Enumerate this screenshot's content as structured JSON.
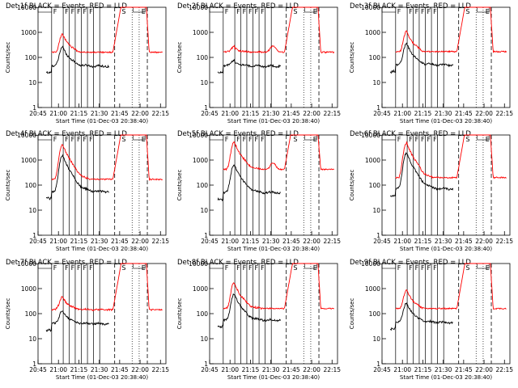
{
  "chart_data": {
    "type": "line",
    "layout": "3x3 grid of detector panels",
    "y_scale": "log",
    "ylim": [
      1,
      10000
    ],
    "yticks": [
      1,
      10,
      100,
      1000,
      10000
    ],
    "ytick_labels": [
      "1",
      "10",
      "100",
      "1000",
      "10000"
    ],
    "xlim_sec": [
      -300,
      5340
    ],
    "xticks_sec": [
      0,
      900,
      1800,
      2700,
      3600,
      4500
    ],
    "xtick_labels": [
      "20:45",
      "21:00",
      "21:15",
      "21:30",
      "21:45",
      "22:00",
      "22:15"
    ],
    "xtick_sec_list": [
      -300,
      600,
      1500,
      2400,
      3300,
      4200,
      5100
    ],
    "ylabel": "Counts/sec",
    "xlabel": "Start Time (01-Dec-03 20:38:40)",
    "colors": {
      "events": "#000000",
      "lld": "#ff0000",
      "background": "#ffffff"
    },
    "series_legend": [
      {
        "name": "Events",
        "color_label": "BLACK"
      },
      {
        "name": "LLD",
        "color_label": "RED"
      }
    ],
    "panels": [
      {
        "detector": "1",
        "title": "Det 1f BLACK = Events, RED = LLD",
        "events": {
          "base": 45,
          "peak": 260,
          "red_ratio": 3.2,
          "sat": 2400
        },
        "lld": {
          "base": 160,
          "hump": false
        },
        "flags": [
          "F",
          "F",
          "F",
          "F",
          "F",
          "F",
          "S",
          "E"
        ]
      },
      {
        "detector": "2",
        "title": "Det 2f BLACK = Events, RED = LLD",
        "events": {
          "base": 45,
          "peak": 70,
          "red_ratio": 3.5,
          "sat": 2400
        },
        "lld": {
          "base": 160,
          "hump": true
        },
        "flags": [
          "F",
          "F",
          "F",
          "F",
          "F",
          "F",
          "S",
          "E"
        ]
      },
      {
        "detector": "3",
        "title": "Det 3f BLACK = Events, RED = LLD",
        "events": {
          "base": 50,
          "peak": 350,
          "red_ratio": 3.0,
          "sat": 2400
        },
        "lld": {
          "base": 170,
          "hump": false
        },
        "flags": [
          "F",
          "F",
          "F",
          "F",
          "F",
          "F",
          "S",
          "E"
        ]
      },
      {
        "detector": "4",
        "title": "Det 4f BLACK = Events, RED = LLD",
        "events": {
          "base": 55,
          "peak": 1500,
          "red_ratio": 2.8,
          "sat": 2400
        },
        "lld": {
          "base": 170,
          "hump": false
        },
        "flags": [
          "F",
          "F",
          "F",
          "F",
          "F",
          "F",
          "S",
          "E"
        ]
      },
      {
        "detector": "5",
        "title": "Det 5f BLACK = Events, RED = LLD",
        "events": {
          "base": 50,
          "peak": 650,
          "red_ratio": 8.0,
          "sat": 2400
        },
        "lld": {
          "base": 420,
          "hump": true
        },
        "flags": [
          "F",
          "F",
          "F",
          "F",
          "F",
          "F",
          "S",
          "E"
        ]
      },
      {
        "detector": "6",
        "title": "Det 6f BLACK = Events, RED = LLD",
        "events": {
          "base": 70,
          "peak": 1900,
          "red_ratio": 2.5,
          "sat": 2400
        },
        "lld": {
          "base": 200,
          "hump": false
        },
        "flags": [
          "F",
          "F",
          "F",
          "F",
          "F",
          "F",
          "S",
          "E"
        ]
      },
      {
        "detector": "7",
        "title": "Det 7f BLACK = Events, RED = LLD",
        "events": {
          "base": 40,
          "peak": 130,
          "red_ratio": 3.5,
          "sat": 2400
        },
        "lld": {
          "base": 140,
          "hump": false
        },
        "flags": [
          "F",
          "F",
          "F",
          "F",
          "F",
          "F",
          "S",
          "E"
        ]
      },
      {
        "detector": "8",
        "title": "Det 8f BLACK = Events, RED = LLD",
        "events": {
          "base": 55,
          "peak": 600,
          "red_ratio": 2.8,
          "sat": 2400
        },
        "lld": {
          "base": 160,
          "hump": false
        },
        "flags": [
          "F",
          "F",
          "F",
          "F",
          "F",
          "F",
          "S",
          "E"
        ]
      },
      {
        "detector": "9",
        "title": "Det 9f BLACK = Events, RED = LLD",
        "events": {
          "base": 45,
          "peak": 260,
          "red_ratio": 3.2,
          "sat": 2400
        },
        "lld": {
          "base": 160,
          "hump": false
        },
        "flags": [
          "F",
          "F",
          "F",
          "F",
          "F",
          "F",
          "S",
          "E"
        ]
      }
    ],
    "event_markers": {
      "solid_sec": [
        300,
        810,
        1080,
        1340,
        1610,
        1880,
        2150,
        2420
      ],
      "dashed_sec": [
        3080,
        4520
      ],
      "dotted_sec": [
        3850,
        4160
      ],
      "flag_positions_sec": [
        300,
        810,
        1080,
        1340,
        1610,
        1880,
        3320,
        4190
      ],
      "flag_boxes": [
        {
          "x0": -300,
          "x1": 300
        },
        {
          "x0": 3900,
          "x1": 4420
        }
      ]
    }
  }
}
